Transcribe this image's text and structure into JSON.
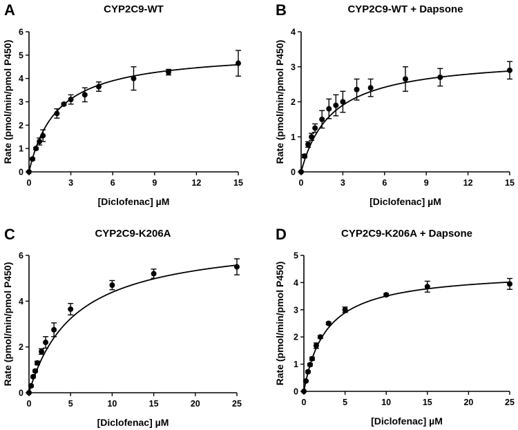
{
  "chart_data": [
    {
      "type": "scatter",
      "panel": "A",
      "title": "CYP2C9-WT",
      "xlabel": "[Diclofenac] µM",
      "ylabel": "Rate (pmol/min/pmol P450)",
      "xlim": [
        0,
        15
      ],
      "ylim": [
        0,
        6
      ],
      "xticks": [
        0,
        3,
        6,
        9,
        12,
        15
      ],
      "yticks": [
        0,
        1,
        2,
        3,
        4,
        5,
        6
      ],
      "fit": {
        "model": "Michaelis-Menten",
        "vmax": 5.2,
        "km": 2.0
      },
      "series": [
        {
          "name": "CYP2C9-WT",
          "x": [
            0,
            0.25,
            0.5,
            0.75,
            1,
            2,
            2.5,
            3,
            4,
            5,
            7.5,
            10,
            15
          ],
          "y": [
            0,
            0.55,
            1.0,
            1.3,
            1.55,
            2.5,
            2.9,
            3.1,
            3.3,
            3.65,
            4.0,
            4.27,
            4.65
          ],
          "err": [
            0,
            0.05,
            0.05,
            0.15,
            0.25,
            0.2,
            0.05,
            0.2,
            0.3,
            0.2,
            0.5,
            0.12,
            0.55
          ]
        }
      ]
    },
    {
      "type": "scatter",
      "panel": "B",
      "title": "CYP2C9-WT + Dapsone",
      "xlabel": "[Diclofenac] µM",
      "ylabel": "Rate (pmol/min/pmol P450)",
      "xlim": [
        0,
        15
      ],
      "ylim": [
        0,
        4
      ],
      "xticks": [
        0,
        3,
        6,
        9,
        12,
        15
      ],
      "yticks": [
        0,
        1,
        2,
        3,
        4
      ],
      "fit": {
        "model": "Michaelis-Menten",
        "vmax": 3.3,
        "km": 2.2
      },
      "series": [
        {
          "name": "CYP2C9-WT + Dapsone",
          "x": [
            0,
            0.25,
            0.5,
            0.75,
            1,
            1.5,
            2,
            2.5,
            3,
            4,
            5,
            7.5,
            10,
            15
          ],
          "y": [
            0,
            0.45,
            0.78,
            1.0,
            1.25,
            1.5,
            1.8,
            1.9,
            2.0,
            2.35,
            2.4,
            2.65,
            2.7,
            2.9
          ],
          "err": [
            0,
            0.05,
            0.08,
            0.1,
            0.12,
            0.25,
            0.28,
            0.3,
            0.3,
            0.3,
            0.25,
            0.35,
            0.25,
            0.25
          ]
        }
      ]
    },
    {
      "type": "scatter",
      "panel": "C",
      "title": "CYP2C9-K206A",
      "xlabel": "[Diclofenac] µM",
      "ylabel": "Rate (pmol/min/pmol P450)",
      "xlim": [
        0,
        25
      ],
      "ylim": [
        0,
        6
      ],
      "xticks": [
        0,
        5,
        10,
        15,
        20,
        25
      ],
      "yticks": [
        0,
        2,
        4,
        6
      ],
      "fit": {
        "model": "Michaelis-Menten",
        "vmax": 6.8,
        "km": 5.5
      },
      "series": [
        {
          "name": "CYP2C9-K206A",
          "x": [
            0,
            0.25,
            0.5,
            0.75,
            1,
            1.5,
            2,
            3,
            5,
            10,
            15,
            25
          ],
          "y": [
            0,
            0.3,
            0.7,
            0.95,
            1.3,
            1.8,
            2.2,
            2.75,
            3.65,
            4.7,
            5.2,
            5.5
          ],
          "err": [
            0,
            0.05,
            0.05,
            0.05,
            0.08,
            0.12,
            0.25,
            0.3,
            0.25,
            0.2,
            0.2,
            0.35
          ]
        }
      ]
    },
    {
      "type": "scatter",
      "panel": "D",
      "title": "CYP2C9-K206A + Dapsone",
      "xlabel": "[Diclofenac] µM",
      "ylabel": "Rate (pmol/min/pmol P450)",
      "xlim": [
        0,
        25
      ],
      "ylim": [
        0,
        5
      ],
      "xticks": [
        0,
        5,
        10,
        15,
        20,
        25
      ],
      "yticks": [
        0,
        1,
        2,
        3,
        4,
        5
      ],
      "fit": {
        "model": "Michaelis-Menten",
        "vmax": 4.45,
        "km": 2.7
      },
      "series": [
        {
          "name": "CYP2C9-K206A + Dapsone",
          "x": [
            0,
            0.25,
            0.5,
            0.75,
            1,
            1.5,
            2,
            3,
            5,
            10,
            15,
            25
          ],
          "y": [
            0,
            0.38,
            0.72,
            0.98,
            1.2,
            1.68,
            2.0,
            2.5,
            3.0,
            3.55,
            3.85,
            3.95
          ],
          "err": [
            0,
            0.03,
            0.04,
            0.05,
            0.06,
            0.1,
            0.05,
            0.05,
            0.1,
            0.05,
            0.2,
            0.2
          ]
        }
      ]
    }
  ]
}
